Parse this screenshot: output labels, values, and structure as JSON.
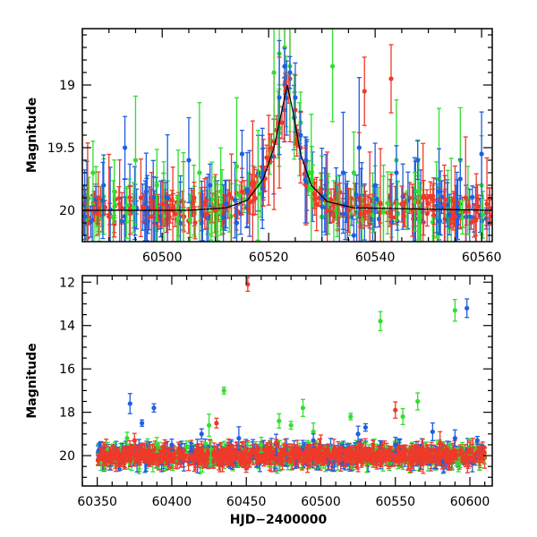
{
  "chart_data": [
    {
      "type": "scatter",
      "panel": "top",
      "xlabel": "",
      "ylabel": "Magnitude",
      "xlim": [
        60485,
        60562
      ],
      "ylim": [
        20.25,
        18.55
      ],
      "y_inverted": true,
      "xticks": [
        60500,
        60520,
        60540,
        60560
      ],
      "yticks": [
        19,
        19.5,
        20
      ],
      "series": [
        {
          "color": "#ee3a2a",
          "marker": "circle-errorbar",
          "points": [
            [
              60486,
              20.0
            ],
            [
              60488,
              19.9
            ],
            [
              60490,
              20.05
            ],
            [
              60492,
              19.95
            ],
            [
              60494,
              20.0
            ],
            [
              60496,
              19.9
            ],
            [
              60498,
              20.05
            ],
            [
              60500,
              19.95
            ],
            [
              60502,
              20.0
            ],
            [
              60504,
              20.05
            ],
            [
              60506,
              19.9
            ],
            [
              60508,
              19.95
            ],
            [
              60510,
              20.0
            ],
            [
              60513,
              19.9
            ],
            [
              60515,
              19.85
            ],
            [
              60517,
              19.8
            ],
            [
              60519,
              19.7
            ],
            [
              60520,
              19.6
            ],
            [
              60521,
              19.45
            ],
            [
              60522,
              19.3
            ],
            [
              60523,
              19.0
            ],
            [
              60524,
              18.95
            ],
            [
              60525,
              19.2
            ],
            [
              60526,
              19.5
            ],
            [
              60527,
              19.8
            ],
            [
              60529,
              19.95
            ],
            [
              60531,
              20.0
            ],
            [
              60533,
              19.95
            ],
            [
              60535,
              20.0
            ],
            [
              60537,
              19.9
            ],
            [
              60539,
              20.0
            ],
            [
              60541,
              19.95
            ],
            [
              60543,
              20.05
            ],
            [
              60545,
              19.95
            ],
            [
              60547,
              20.0
            ],
            [
              60549,
              19.9
            ],
            [
              60551,
              20.0
            ],
            [
              60553,
              19.95
            ],
            [
              60555,
              20.05
            ],
            [
              60557,
              19.9
            ],
            [
              60559,
              20.0
            ],
            [
              60561,
              19.95
            ],
            [
              60538,
              19.05
            ],
            [
              60543,
              18.95
            ]
          ]
        },
        {
          "color": "#33dd33",
          "marker": "circle-errorbar",
          "points": [
            [
              60487,
              19.7
            ],
            [
              60491,
              19.85
            ],
            [
              60495,
              19.6
            ],
            [
              60499,
              19.8
            ],
            [
              60503,
              19.9
            ],
            [
              60507,
              19.7
            ],
            [
              60511,
              19.85
            ],
            [
              60514,
              19.65
            ],
            [
              60518,
              19.8
            ],
            [
              60521,
              18.9
            ],
            [
              60522,
              18.75
            ],
            [
              60523,
              18.7
            ],
            [
              60524,
              18.85
            ],
            [
              60526,
              19.3
            ],
            [
              60528,
              19.75
            ],
            [
              60532,
              18.85
            ],
            [
              60536,
              19.7
            ],
            [
              60540,
              19.8
            ],
            [
              60544,
              19.6
            ],
            [
              60548,
              19.85
            ],
            [
              60552,
              19.75
            ],
            [
              60556,
              19.6
            ],
            [
              60560,
              19.8
            ],
            [
              60504,
              20.0
            ],
            [
              60530,
              20.05
            ],
            [
              60546,
              20.0
            ]
          ]
        },
        {
          "color": "#1f5fe0",
          "marker": "circle-errorbar",
          "points": [
            [
              60485.5,
              20.05
            ],
            [
              60489,
              19.8
            ],
            [
              60493,
              19.5
            ],
            [
              60497,
              19.85
            ],
            [
              60501,
              19.9
            ],
            [
              60505,
              19.6
            ],
            [
              60509,
              19.8
            ],
            [
              60512,
              19.95
            ],
            [
              60515,
              19.55
            ],
            [
              60519,
              19.7
            ],
            [
              60522,
              19.1
            ],
            [
              60523,
              18.85
            ],
            [
              60524,
              18.9
            ],
            [
              60525,
              19.1
            ],
            [
              60526,
              19.4
            ],
            [
              60527,
              19.6
            ],
            [
              60530,
              19.9
            ],
            [
              60534,
              19.7
            ],
            [
              60537,
              19.5
            ],
            [
              60540,
              19.8
            ],
            [
              60544,
              19.7
            ],
            [
              60548,
              19.6
            ],
            [
              60552,
              19.85
            ],
            [
              60556,
              19.75
            ],
            [
              60560,
              19.55
            ],
            [
              60514,
              20.1
            ],
            [
              60536,
              20.2
            ]
          ]
        }
      ],
      "model_curve": {
        "color": "#000000",
        "points": [
          [
            60485,
            20.0
          ],
          [
            60505,
            20.0
          ],
          [
            60512,
            19.98
          ],
          [
            60516,
            19.92
          ],
          [
            60519,
            19.75
          ],
          [
            60521,
            19.5
          ],
          [
            60522.5,
            19.2
          ],
          [
            60523.5,
            19.0
          ],
          [
            60524.5,
            19.2
          ],
          [
            60526,
            19.55
          ],
          [
            60528,
            19.8
          ],
          [
            60531,
            19.93
          ],
          [
            60536,
            19.98
          ],
          [
            60562,
            20.0
          ]
        ]
      }
    },
    {
      "type": "scatter",
      "panel": "bottom",
      "xlabel": "HJD−2400000",
      "ylabel": "Magnitude",
      "xlim": [
        60340,
        60615
      ],
      "ylim": [
        21.4,
        11.7
      ],
      "y_inverted": true,
      "xticks": [
        60350,
        60400,
        60450,
        60500,
        60550,
        60600
      ],
      "yticks": [
        12,
        14,
        16,
        18,
        20
      ],
      "series": [
        {
          "color": "#33dd33",
          "marker": "circle-errorbar",
          "points": [
            [
              60370,
              19.2
            ],
            [
              60390,
              19.5
            ],
            [
              60410,
              19.6
            ],
            [
              60425,
              18.6
            ],
            [
              60435,
              17.0
            ],
            [
              60460,
              19.5
            ],
            [
              60472,
              18.4
            ],
            [
              60480,
              18.6
            ],
            [
              60488,
              17.8
            ],
            [
              60495,
              18.9
            ],
            [
              60520,
              18.2
            ],
            [
              60540,
              13.8
            ],
            [
              60555,
              18.2
            ],
            [
              60565,
              17.5
            ],
            [
              60590,
              13.3
            ],
            [
              60600,
              19.6
            ]
          ]
        },
        {
          "color": "#1f5fe0",
          "marker": "circle-errorbar",
          "points": [
            [
              60372,
              17.6
            ],
            [
              60380,
              18.5
            ],
            [
              60388,
              17.8
            ],
            [
              60400,
              19.5
            ],
            [
              60420,
              19.0
            ],
            [
              60445,
              19.2
            ],
            [
              60470,
              19.5
            ],
            [
              60495,
              19.3
            ],
            [
              60525,
              19.0
            ],
            [
              60530,
              18.7
            ],
            [
              60550,
              19.5
            ],
            [
              60575,
              18.9
            ],
            [
              60590,
              19.2
            ],
            [
              60598,
              13.2
            ],
            [
              60605,
              19.3
            ]
          ]
        },
        {
          "color": "#ee3a2a",
          "marker": "circle-errorbar",
          "points": [
            [
              60375,
              19.3
            ],
            [
              60430,
              18.5
            ],
            [
              60451,
              12.1
            ],
            [
              60470,
              19.4
            ],
            [
              60500,
              19.6
            ],
            [
              60535,
              19.5
            ],
            [
              60550,
              17.9
            ],
            [
              60580,
              19.4
            ],
            [
              60600,
              19.7
            ]
          ]
        }
      ],
      "band": {
        "y_center": 20.0,
        "y_spread": 0.35,
        "x_start": 60350,
        "x_end": 60610
      }
    }
  ]
}
